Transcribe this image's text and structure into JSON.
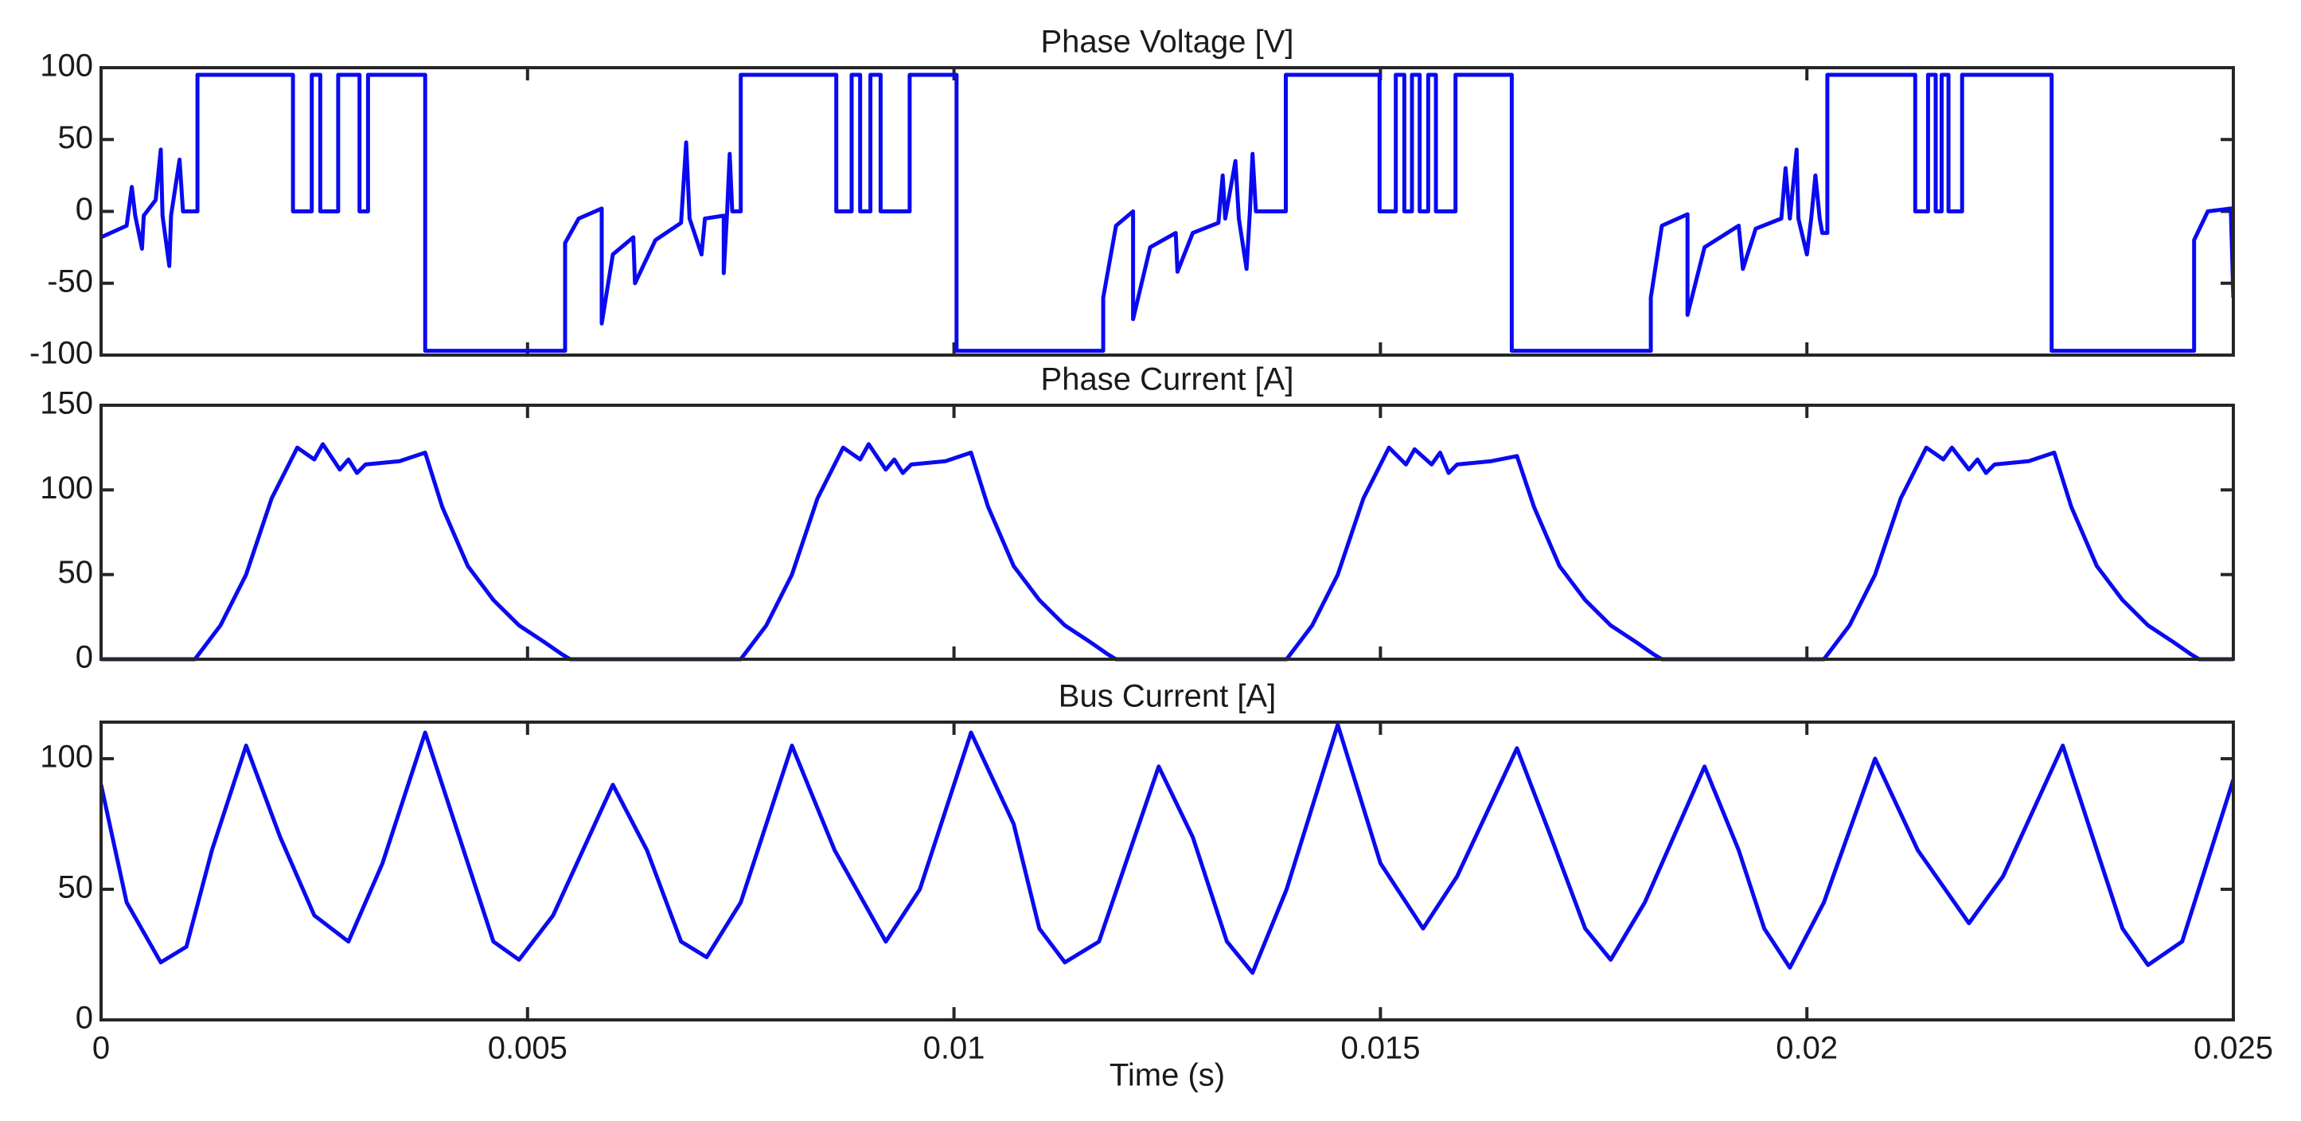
{
  "chart_data": [
    {
      "type": "line",
      "title": "Phase Voltage [V]",
      "color": "#0a0af0",
      "xlim": [
        0,
        0.025
      ],
      "xticks": [
        0,
        0.005,
        0.01,
        0.015,
        0.02,
        0.025
      ],
      "xtick_labels": false,
      "ylim": [
        -100,
        100
      ],
      "yticks": [
        -100,
        -50,
        0,
        50,
        100
      ],
      "x": [
        0,
        0.0003,
        0.00036,
        0.0004,
        0.00048,
        0.0005,
        0.00064,
        0.0007,
        0.00072,
        0.0008,
        0.00082,
        0.00092,
        0.00096,
        0.00113,
        0.00113,
        0.00225,
        0.00225,
        0.00247,
        0.00247,
        0.00257,
        0.00257,
        0.00278,
        0.00278,
        0.00303,
        0.00303,
        0.00313,
        0.00313,
        0.0038,
        0.0038,
        0.00544,
        0.00544,
        0.0056,
        0.00587,
        0.00587,
        0.006,
        0.00624,
        0.00626,
        0.0065,
        0.0068,
        0.00686,
        0.0069,
        0.00704,
        0.00708,
        0.0073,
        0.0073,
        0.00734,
        0.00737,
        0.0074,
        0.0075,
        0.0075,
        0.00862,
        0.00862,
        0.0088,
        0.0088,
        0.0089,
        0.0089,
        0.00902,
        0.00902,
        0.00914,
        0.00914,
        0.00948,
        0.00948,
        0.01003,
        0.01003,
        0.01175,
        0.01175,
        0.0119,
        0.0121,
        0.0121,
        0.0123,
        0.0126,
        0.01262,
        0.0128,
        0.0131,
        0.01315,
        0.01318,
        0.0133,
        0.01334,
        0.01343,
        0.01347,
        0.0135,
        0.01354,
        0.01389,
        0.01389,
        0.01499,
        0.01499,
        0.01518,
        0.01518,
        0.01528,
        0.01528,
        0.01537,
        0.01537,
        0.01546,
        0.01546,
        0.01556,
        0.01556,
        0.01565,
        0.01565,
        0.01588,
        0.01588,
        0.01654,
        0.01654,
        0.01817,
        0.01817,
        0.0183,
        0.0186,
        0.0186,
        0.0188,
        0.0192,
        0.01925,
        0.0194,
        0.0197,
        0.01975,
        0.0198,
        0.01988,
        0.0199,
        0.02,
        0.02005,
        0.0201,
        0.02015,
        0.02018,
        0.02024,
        0.02024,
        0.02127,
        0.02127,
        0.02142,
        0.02142,
        0.02151,
        0.02151,
        0.02158,
        0.02158,
        0.02166,
        0.02166,
        0.02182,
        0.02182,
        0.02287,
        0.02287,
        0.02454,
        0.02454,
        0.0247,
        0.02497,
        0.025
      ],
      "values": [
        -18,
        -10,
        17,
        -3,
        -26,
        -3,
        8,
        43,
        -3,
        -38,
        -3,
        36,
        0,
        0,
        95,
        95,
        0,
        0,
        95,
        95,
        0,
        0,
        95,
        95,
        0,
        0,
        95,
        95,
        -97,
        -97,
        -22,
        -5,
        2,
        -78,
        -30,
        -18,
        -50,
        -20,
        -8,
        48,
        -5,
        -30,
        -5,
        -3,
        -43,
        0,
        40,
        0,
        0,
        95,
        95,
        0,
        0,
        95,
        95,
        0,
        0,
        95,
        95,
        0,
        0,
        95,
        95,
        -97,
        -97,
        -60,
        -10,
        0,
        -75,
        -25,
        -15,
        -42,
        -15,
        -8,
        25,
        -5,
        35,
        -5,
        -40,
        0,
        40,
        0,
        0,
        95,
        95,
        0,
        0,
        95,
        95,
        0,
        0,
        95,
        95,
        0,
        0,
        95,
        95,
        0,
        0,
        95,
        95,
        -97,
        -97,
        -60,
        -10,
        -2,
        -72,
        -25,
        -10,
        -40,
        -12,
        -5,
        30,
        -5,
        43,
        -5,
        -30,
        -5,
        25,
        -5,
        -15,
        -15,
        95,
        95,
        0,
        0,
        95,
        95,
        0,
        0,
        95,
        95,
        0,
        0,
        95,
        95,
        -97,
        -97,
        -20,
        0,
        2,
        -60
      ]
    },
    {
      "type": "line",
      "title": "Phase Current [A]",
      "color": "#0a0af0",
      "xlim": [
        0,
        0.025
      ],
      "xticks": [
        0,
        0.005,
        0.01,
        0.015,
        0.02,
        0.025
      ],
      "xtick_labels": false,
      "ylim": [
        0,
        150
      ],
      "yticks": [
        0,
        50,
        100,
        150
      ],
      "x": [
        0,
        0.0011,
        0.0014,
        0.0017,
        0.002,
        0.0023,
        0.0025,
        0.0026,
        0.0028,
        0.0029,
        0.003,
        0.0031,
        0.0035,
        0.0038,
        0.004,
        0.0043,
        0.0046,
        0.0049,
        0.0052,
        0.0054,
        0.0055,
        0.0075,
        0.0078,
        0.0081,
        0.0084,
        0.0087,
        0.0089,
        0.009,
        0.0092,
        0.0093,
        0.0094,
        0.0095,
        0.0099,
        0.0102,
        0.0104,
        0.0107,
        0.011,
        0.0113,
        0.0116,
        0.0118,
        0.0119,
        0.0139,
        0.0142,
        0.0145,
        0.0148,
        0.0151,
        0.0153,
        0.0154,
        0.0156,
        0.0157,
        0.0158,
        0.0159,
        0.0163,
        0.0166,
        0.0168,
        0.0171,
        0.0174,
        0.0177,
        0.018,
        0.0182,
        0.0183,
        0.0202,
        0.0205,
        0.0208,
        0.0211,
        0.0214,
        0.0216,
        0.0217,
        0.0219,
        0.022,
        0.0221,
        0.0222,
        0.0226,
        0.0229,
        0.0231,
        0.0234,
        0.0237,
        0.024,
        0.0243,
        0.0245,
        0.0246,
        0.025
      ],
      "values": [
        0,
        0,
        20,
        50,
        95,
        125,
        118,
        127,
        112,
        118,
        110,
        115,
        117,
        122,
        90,
        55,
        35,
        20,
        10,
        3,
        0,
        0,
        20,
        50,
        95,
        125,
        118,
        127,
        112,
        118,
        110,
        115,
        117,
        122,
        90,
        55,
        35,
        20,
        10,
        3,
        0,
        0,
        20,
        50,
        95,
        125,
        115,
        124,
        115,
        122,
        110,
        115,
        117,
        120,
        90,
        55,
        35,
        20,
        10,
        3,
        0,
        0,
        20,
        50,
        95,
        125,
        118,
        125,
        112,
        118,
        110,
        115,
        117,
        122,
        90,
        55,
        35,
        20,
        10,
        3,
        0,
        0
      ]
    },
    {
      "type": "line",
      "title": "Bus Current [A]",
      "xlabel": "Time (s)",
      "color": "#0a0af0",
      "xlim": [
        0,
        0.025
      ],
      "xticks": [
        0,
        0.005,
        0.01,
        0.015,
        0.02,
        0.025
      ],
      "ylim": [
        0,
        114
      ],
      "yticks": [
        0,
        50,
        100
      ],
      "x": [
        0,
        0.0003,
        0.0007,
        0.001,
        0.0013,
        0.0017,
        0.0021,
        0.0025,
        0.0029,
        0.0033,
        0.0038,
        0.0042,
        0.0046,
        0.0049,
        0.0053,
        0.006,
        0.0064,
        0.0068,
        0.0071,
        0.0075,
        0.0081,
        0.0086,
        0.0092,
        0.0096,
        0.0102,
        0.0107,
        0.011,
        0.0113,
        0.0117,
        0.0124,
        0.0128,
        0.0132,
        0.0135,
        0.0139,
        0.0145,
        0.015,
        0.0155,
        0.0159,
        0.0166,
        0.017,
        0.0174,
        0.0177,
        0.0181,
        0.0188,
        0.0192,
        0.0195,
        0.0198,
        0.0202,
        0.0208,
        0.0213,
        0.0219,
        0.0223,
        0.023,
        0.0234,
        0.0237,
        0.024,
        0.0244,
        0.025
      ],
      "values": [
        90,
        45,
        22,
        28,
        65,
        105,
        70,
        40,
        30,
        60,
        110,
        70,
        30,
        23,
        40,
        90,
        65,
        30,
        24,
        45,
        105,
        65,
        30,
        50,
        110,
        75,
        35,
        22,
        30,
        97,
        70,
        30,
        18,
        50,
        113,
        60,
        35,
        55,
        104,
        70,
        35,
        23,
        45,
        97,
        65,
        35,
        20,
        45,
        100,
        65,
        37,
        55,
        105,
        65,
        35,
        21,
        30,
        92
      ]
    }
  ]
}
